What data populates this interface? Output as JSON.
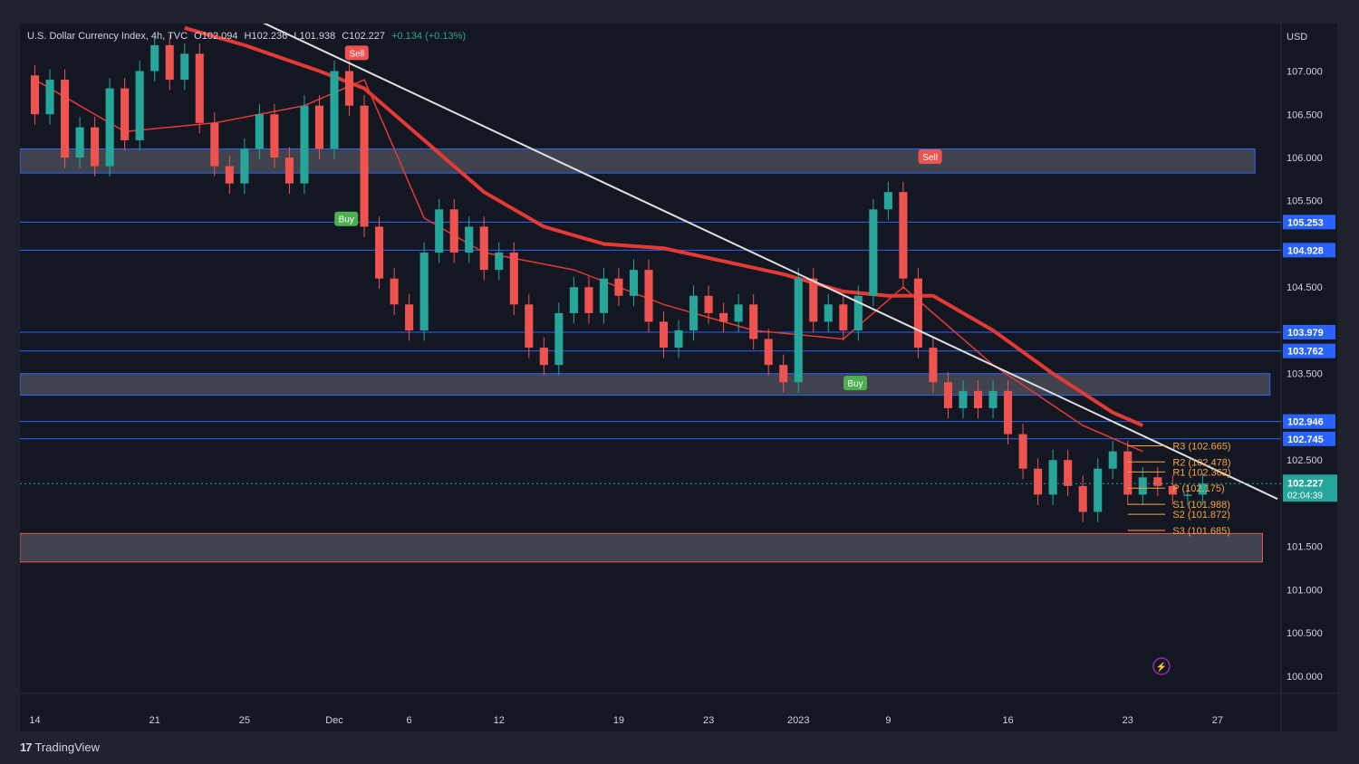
{
  "header": {
    "symbol": "U.S. Dollar Currency Index, 4h, TVC",
    "open": "O102.094",
    "high": "H102.236",
    "low": "L101.938",
    "close": "C102.227",
    "change": "+0.134 (+0.13%)"
  },
  "currency": "USD",
  "brand": "TradingView",
  "colors": {
    "background": "#131722",
    "frame": "#1e222d",
    "up": "#26a69a",
    "down": "#ef5350",
    "level_line": "#2962ff",
    "pivot": "#f7a440",
    "zone": "#787b86",
    "trendline": "#e0e0e0",
    "ema": "#e53935",
    "signal_green": "#4caf50",
    "signal_red": "#ef5350"
  },
  "chart_data": {
    "type": "candlestick",
    "title": "U.S. Dollar Currency Index, 4h, TVC",
    "ylabel": "USD",
    "ylim": [
      99.8,
      107.55
    ],
    "y_ticks": [
      "107.000",
      "106.500",
      "106.000",
      "105.500",
      "104.500",
      "103.500",
      "102.500",
      "101.500",
      "101.000",
      "100.500",
      "100.000"
    ],
    "x_ticks": [
      "14",
      "21",
      "25",
      "Dec",
      "6",
      "12",
      "19",
      "23",
      "2023",
      "9",
      "16",
      "23",
      "27"
    ],
    "x_tick_positions": [
      0,
      8,
      14,
      20,
      25,
      31,
      39,
      45,
      51,
      57,
      65,
      73,
      79
    ],
    "x_range": [
      -1,
      83
    ],
    "horizontal_levels": [
      {
        "label": "105.253",
        "value": 105.253
      },
      {
        "label": "104.928",
        "value": 104.928
      },
      {
        "label": "103.979",
        "value": 103.979
      },
      {
        "label": "103.762",
        "value": 103.762
      },
      {
        "label": "102.946",
        "value": 102.946
      },
      {
        "label": "102.745",
        "value": 102.745
      }
    ],
    "zones": [
      {
        "top": 106.1,
        "bottom": 105.82,
        "x_end": 81.5,
        "border": "#2962ff"
      },
      {
        "top": 103.5,
        "bottom": 103.25,
        "x_end": 82.5,
        "border": "#2962ff"
      },
      {
        "top": 101.65,
        "bottom": 101.32,
        "x_end": 82,
        "border": "#ef5350"
      }
    ],
    "pivots": [
      {
        "label": "R3 (102.665)",
        "value": 102.665
      },
      {
        "label": "R2 (102.478)",
        "value": 102.478
      },
      {
        "label": "R1 (102.362)",
        "value": 102.362
      },
      {
        "label": "P (102.175)",
        "value": 102.175
      },
      {
        "label": "S1 (101.988)",
        "value": 101.988
      },
      {
        "label": "S2 (101.872)",
        "value": 101.872
      },
      {
        "label": "S3 (101.685)",
        "value": 101.685
      }
    ],
    "last_price": {
      "value": 102.227,
      "label": "102.227",
      "countdown": "02:04:39"
    },
    "signals": [
      {
        "label": "Sell",
        "x": 21.5,
        "y": 107.2,
        "side": "sell"
      },
      {
        "label": "Buy",
        "x": 20.8,
        "y": 105.28,
        "side": "buy"
      },
      {
        "label": "Sell",
        "x": 59.8,
        "y": 106.0,
        "side": "sell"
      },
      {
        "label": "Buy",
        "x": 54.8,
        "y": 103.38,
        "side": "buy"
      }
    ],
    "trendline": [
      [
        14.5,
        107.62
      ],
      [
        83,
        102.05
      ]
    ],
    "ema_main": [
      [
        10,
        107.5
      ],
      [
        14,
        107.3
      ],
      [
        19,
        107.0
      ],
      [
        22,
        106.8
      ],
      [
        26,
        106.2
      ],
      [
        30,
        105.6
      ],
      [
        34,
        105.2
      ],
      [
        38,
        105.0
      ],
      [
        42,
        104.95
      ],
      [
        46,
        104.8
      ],
      [
        50,
        104.65
      ],
      [
        54,
        104.45
      ],
      [
        57,
        104.4
      ],
      [
        60,
        104.4
      ],
      [
        64,
        104.0
      ],
      [
        68,
        103.5
      ],
      [
        72,
        103.05
      ],
      [
        74,
        102.9
      ]
    ],
    "ema_fast": [
      [
        0,
        106.9
      ],
      [
        6,
        106.3
      ],
      [
        12,
        106.4
      ],
      [
        18,
        106.6
      ],
      [
        22,
        106.9
      ],
      [
        26,
        105.3
      ],
      [
        30,
        104.9
      ],
      [
        36,
        104.7
      ],
      [
        42,
        104.3
      ],
      [
        48,
        104.0
      ],
      [
        54,
        103.9
      ],
      [
        58,
        104.5
      ],
      [
        60,
        104.2
      ],
      [
        64,
        103.6
      ],
      [
        70,
        102.9
      ],
      [
        74,
        102.6
      ]
    ],
    "candles": [
      [
        106.95,
        106.5
      ],
      [
        106.5,
        106.9
      ],
      [
        106.9,
        106.0
      ],
      [
        106.0,
        106.35
      ],
      [
        106.35,
        105.9
      ],
      [
        105.9,
        106.8
      ],
      [
        106.8,
        106.2
      ],
      [
        106.2,
        107.0
      ],
      [
        107.0,
        107.3
      ],
      [
        107.3,
        106.9
      ],
      [
        106.9,
        107.2
      ],
      [
        107.2,
        106.4
      ],
      [
        106.4,
        105.9
      ],
      [
        105.9,
        105.7
      ],
      [
        105.7,
        106.1
      ],
      [
        106.1,
        106.5
      ],
      [
        106.5,
        106.0
      ],
      [
        106.0,
        105.7
      ],
      [
        105.7,
        106.6
      ],
      [
        106.6,
        106.1
      ],
      [
        106.1,
        107.0
      ],
      [
        107.0,
        106.6
      ],
      [
        106.6,
        105.2
      ],
      [
        105.2,
        104.6
      ],
      [
        104.6,
        104.3
      ],
      [
        104.3,
        104.0
      ],
      [
        104.0,
        104.9
      ],
      [
        104.9,
        105.4
      ],
      [
        105.4,
        104.9
      ],
      [
        104.9,
        105.2
      ],
      [
        105.2,
        104.7
      ],
      [
        104.7,
        104.9
      ],
      [
        104.9,
        104.3
      ],
      [
        104.3,
        103.8
      ],
      [
        103.8,
        103.6
      ],
      [
        103.6,
        104.2
      ],
      [
        104.2,
        104.5
      ],
      [
        104.5,
        104.2
      ],
      [
        104.2,
        104.6
      ],
      [
        104.6,
        104.4
      ],
      [
        104.4,
        104.7
      ],
      [
        104.7,
        104.1
      ],
      [
        104.1,
        103.8
      ],
      [
        103.8,
        104.0
      ],
      [
        104.0,
        104.4
      ],
      [
        104.4,
        104.2
      ],
      [
        104.2,
        104.1
      ],
      [
        104.1,
        104.3
      ],
      [
        104.3,
        103.9
      ],
      [
        103.9,
        103.6
      ],
      [
        103.6,
        103.4
      ],
      [
        103.4,
        104.6
      ],
      [
        104.6,
        104.1
      ],
      [
        104.1,
        104.3
      ],
      [
        104.3,
        104.0
      ],
      [
        104.0,
        104.4
      ],
      [
        104.4,
        105.4
      ],
      [
        105.4,
        105.6
      ],
      [
        105.6,
        104.6
      ],
      [
        104.6,
        103.8
      ],
      [
        103.8,
        103.4
      ],
      [
        103.4,
        103.1
      ],
      [
        103.1,
        103.3
      ],
      [
        103.3,
        103.1
      ],
      [
        103.1,
        103.3
      ],
      [
        103.3,
        102.8
      ],
      [
        102.8,
        102.4
      ],
      [
        102.4,
        102.1
      ],
      [
        102.1,
        102.5
      ],
      [
        102.5,
        102.2
      ],
      [
        102.2,
        101.9
      ],
      [
        101.9,
        102.4
      ],
      [
        102.4,
        102.6
      ],
      [
        102.6,
        102.1
      ],
      [
        102.1,
        102.3
      ],
      [
        102.3,
        102.2
      ],
      [
        102.2,
        102.1
      ],
      [
        102.1,
        102.1
      ],
      [
        102.1,
        102.227
      ]
    ]
  }
}
